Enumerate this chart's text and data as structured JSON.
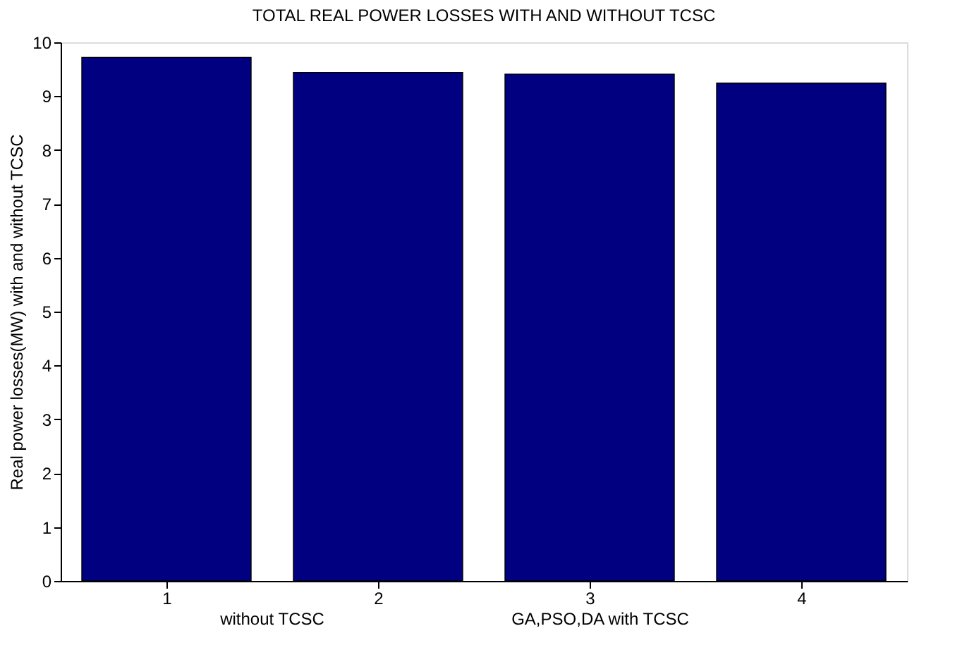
{
  "chart_data": {
    "type": "bar",
    "title": "TOTAL REAL POWER LOSSES WITH AND WITHOUT TCSC",
    "ylabel": "Real power losses(MW) with and without TCSC",
    "categories": [
      "1",
      "2",
      "3",
      "4"
    ],
    "values": [
      9.72,
      9.44,
      9.41,
      9.24
    ],
    "color": "#000080",
    "ylim": [
      0,
      10
    ],
    "yticks": [
      0,
      1,
      2,
      3,
      4,
      5,
      6,
      7,
      8,
      9,
      10
    ],
    "grid": false,
    "annotations": [
      "without TCSC",
      "GA,PSO,DA with TCSC"
    ]
  }
}
